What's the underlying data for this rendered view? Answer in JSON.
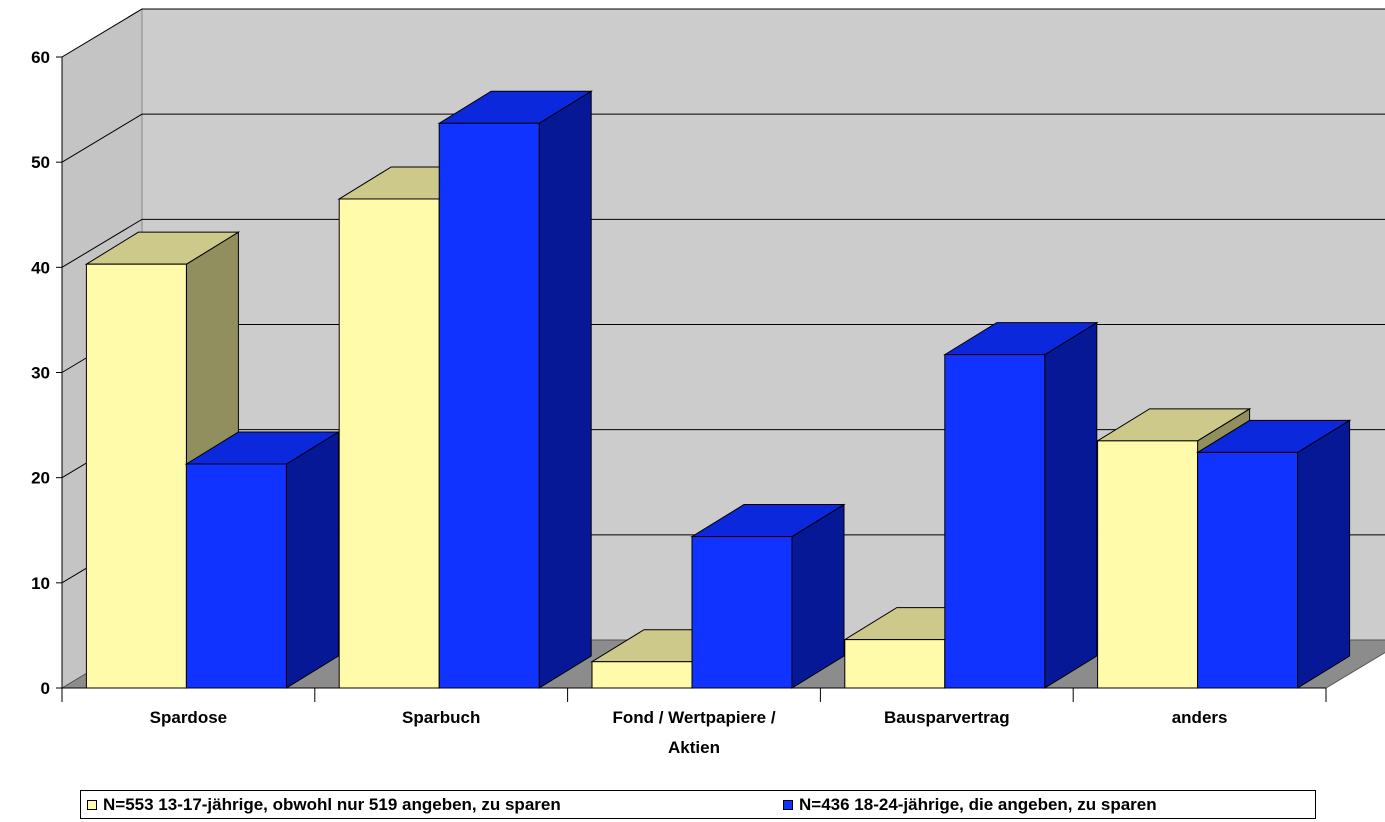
{
  "chart_data": {
    "type": "bar",
    "categories": [
      "Spardose",
      "Sparbuch",
      "Fond / Wertpapiere / Aktien",
      "Bausparvertrag",
      "anders"
    ],
    "category_lines": [
      [
        "Spardose"
      ],
      [
        "Sparbuch"
      ],
      [
        "Fond / Wertpapiere /",
        "Aktien"
      ],
      [
        "Bausparvertrag"
      ],
      [
        "anders"
      ]
    ],
    "series": [
      {
        "name": "N=553 13-17-jährige, obwohl nur 519 angeben, zu sparen",
        "values": [
          40.3,
          46.5,
          2.5,
          4.6,
          23.5
        ],
        "color": "#FFFBAA",
        "top_color": "#CCC98A",
        "side_color": "#928F5E"
      },
      {
        "name": "N=436 18-24-jährige, die angeben, zu sparen",
        "values": [
          21.3,
          53.7,
          14.4,
          31.7,
          22.4
        ],
        "color": "#1133FF",
        "top_color": "#0C28DD",
        "side_color": "#071897"
      }
    ],
    "yticks": [
      0,
      10,
      20,
      30,
      40,
      50,
      60
    ],
    "ylim": [
      0,
      60
    ],
    "grid": true,
    "legend_position": "bottom",
    "three_d": true,
    "title": "",
    "xlabel": "",
    "ylabel": ""
  }
}
